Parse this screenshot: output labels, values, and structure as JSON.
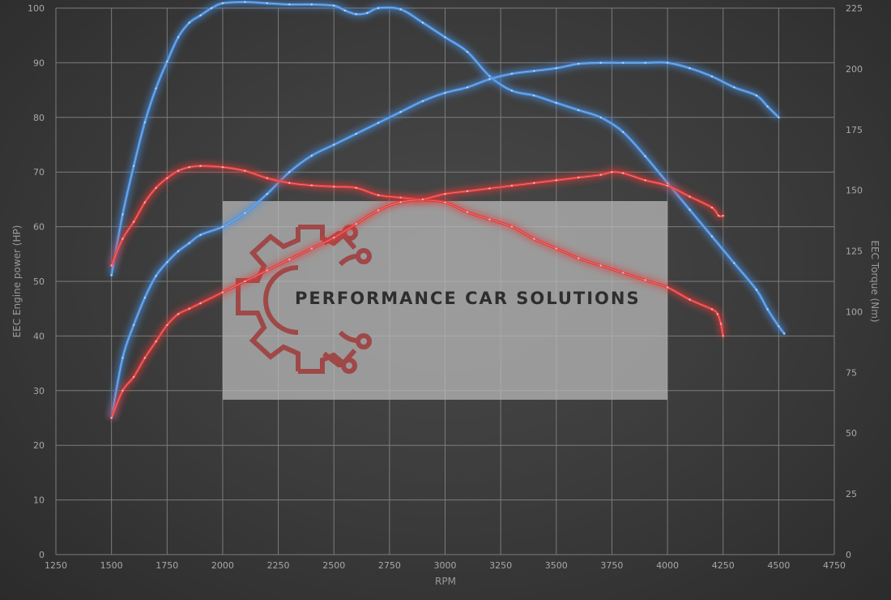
{
  "chart_data": {
    "type": "line",
    "xlabel": "RPM",
    "ylabel_left": "EEC Engine power (HP)",
    "ylabel_right": "EEC Torque (Nm)",
    "xlim": [
      1250,
      4750
    ],
    "ylim_left": [
      0,
      100
    ],
    "ylim_right": [
      0,
      225
    ],
    "x_ticks": [
      1250,
      1500,
      1750,
      2000,
      2250,
      2500,
      2750,
      3000,
      3250,
      3500,
      3750,
      4000,
      4250,
      4500,
      4750
    ],
    "y_ticks_left": [
      0,
      10,
      20,
      30,
      40,
      50,
      60,
      70,
      80,
      90,
      100
    ],
    "y_ticks_right": [
      0,
      25,
      50,
      75,
      100,
      125,
      150,
      175,
      200,
      225
    ],
    "grid": true,
    "legend": "none",
    "series": [
      {
        "color": "#4a90e2",
        "axis": "right",
        "points": [
          [
            1500,
            115
          ],
          [
            1550,
            140
          ],
          [
            1600,
            160
          ],
          [
            1650,
            178
          ],
          [
            1700,
            192
          ],
          [
            1750,
            203
          ],
          [
            1800,
            213
          ],
          [
            1850,
            219
          ],
          [
            1900,
            222
          ],
          [
            1950,
            225
          ],
          [
            2000,
            227
          ],
          [
            2100,
            227.5
          ],
          [
            2200,
            227
          ],
          [
            2300,
            226.5
          ],
          [
            2400,
            226.5
          ],
          [
            2500,
            226
          ],
          [
            2550,
            224
          ],
          [
            2600,
            222.5
          ],
          [
            2650,
            223
          ],
          [
            2700,
            225
          ],
          [
            2800,
            224.5
          ],
          [
            2900,
            219
          ],
          [
            3000,
            213
          ],
          [
            3100,
            207
          ],
          [
            3200,
            197
          ],
          [
            3300,
            191
          ],
          [
            3400,
            189
          ],
          [
            3500,
            186
          ],
          [
            3600,
            183
          ],
          [
            3700,
            180
          ],
          [
            3800,
            174
          ],
          [
            3900,
            164
          ],
          [
            4000,
            153
          ],
          [
            4100,
            142
          ],
          [
            4200,
            131
          ],
          [
            4300,
            120
          ],
          [
            4400,
            109
          ],
          [
            4450,
            101
          ],
          [
            4500,
            94
          ],
          [
            4525,
            91
          ]
        ]
      },
      {
        "color": "#4a90e2",
        "axis": "left",
        "points": [
          [
            1500,
            25
          ],
          [
            1550,
            36
          ],
          [
            1600,
            42
          ],
          [
            1650,
            47
          ],
          [
            1700,
            51
          ],
          [
            1750,
            53.5
          ],
          [
            1800,
            55.5
          ],
          [
            1850,
            57
          ],
          [
            1900,
            58.5
          ],
          [
            2000,
            60
          ],
          [
            2100,
            62.5
          ],
          [
            2200,
            66
          ],
          [
            2300,
            70
          ],
          [
            2400,
            73
          ],
          [
            2500,
            75
          ],
          [
            2600,
            77
          ],
          [
            2700,
            79
          ],
          [
            2800,
            81
          ],
          [
            2900,
            83
          ],
          [
            3000,
            84.5
          ],
          [
            3100,
            85.5
          ],
          [
            3200,
            87
          ],
          [
            3300,
            88
          ],
          [
            3400,
            88.5
          ],
          [
            3500,
            89
          ],
          [
            3600,
            89.8
          ],
          [
            3700,
            90
          ],
          [
            3800,
            90
          ],
          [
            3900,
            90
          ],
          [
            4000,
            90
          ],
          [
            4100,
            89
          ],
          [
            4200,
            87.5
          ],
          [
            4300,
            85.5
          ],
          [
            4400,
            84
          ],
          [
            4450,
            82
          ],
          [
            4500,
            80
          ]
        ]
      },
      {
        "color": "#e23a3a",
        "axis": "right",
        "points": [
          [
            1500,
            119
          ],
          [
            1550,
            130
          ],
          [
            1600,
            137
          ],
          [
            1650,
            145
          ],
          [
            1700,
            151
          ],
          [
            1750,
            155
          ],
          [
            1800,
            158
          ],
          [
            1850,
            159.5
          ],
          [
            1900,
            160
          ],
          [
            2000,
            159.5
          ],
          [
            2100,
            158
          ],
          [
            2200,
            155
          ],
          [
            2300,
            153
          ],
          [
            2400,
            152
          ],
          [
            2500,
            151.5
          ],
          [
            2600,
            151
          ],
          [
            2700,
            148
          ],
          [
            2800,
            147
          ],
          [
            2900,
            146
          ],
          [
            3000,
            145
          ],
          [
            3100,
            141
          ],
          [
            3200,
            138
          ],
          [
            3300,
            135
          ],
          [
            3400,
            130
          ],
          [
            3500,
            126
          ],
          [
            3600,
            122
          ],
          [
            3700,
            119
          ],
          [
            3800,
            116
          ],
          [
            3900,
            113
          ],
          [
            4000,
            110
          ],
          [
            4100,
            105
          ],
          [
            4200,
            101
          ],
          [
            4225,
            99
          ],
          [
            4240,
            95
          ],
          [
            4250,
            90
          ]
        ]
      },
      {
        "color": "#e23a3a",
        "axis": "left",
        "points": [
          [
            1500,
            25
          ],
          [
            1550,
            30
          ],
          [
            1600,
            32.5
          ],
          [
            1650,
            36
          ],
          [
            1700,
            39
          ],
          [
            1750,
            42
          ],
          [
            1800,
            44
          ],
          [
            1850,
            45
          ],
          [
            1900,
            46
          ],
          [
            2000,
            48
          ],
          [
            2100,
            50
          ],
          [
            2200,
            52
          ],
          [
            2300,
            54
          ],
          [
            2400,
            56
          ],
          [
            2500,
            58
          ],
          [
            2600,
            60.5
          ],
          [
            2700,
            63
          ],
          [
            2800,
            64.5
          ],
          [
            2900,
            65
          ],
          [
            3000,
            66
          ],
          [
            3100,
            66.5
          ],
          [
            3200,
            67
          ],
          [
            3300,
            67.5
          ],
          [
            3400,
            68
          ],
          [
            3500,
            68.5
          ],
          [
            3600,
            69
          ],
          [
            3700,
            69.5
          ],
          [
            3750,
            70
          ],
          [
            3800,
            69.8
          ],
          [
            3900,
            68.5
          ],
          [
            4000,
            67.5
          ],
          [
            4100,
            65.5
          ],
          [
            4200,
            63.5
          ],
          [
            4230,
            62
          ],
          [
            4250,
            62
          ]
        ]
      }
    ]
  },
  "watermark": {
    "text": "PERFORMANCE CAR SOLUTIONS",
    "logo": "gear-circuit-logo-icon",
    "logo_color": "#a03a3a",
    "panel_color": "#bdbdbd"
  }
}
